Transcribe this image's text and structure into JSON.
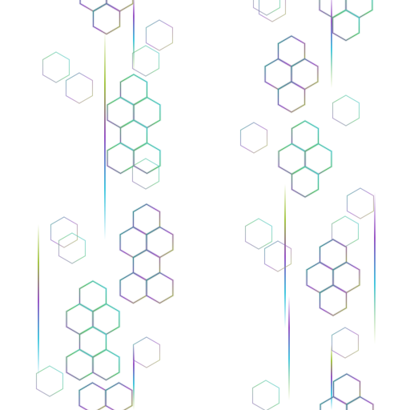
{
  "colors": {
    "background": "#ffffff",
    "teal": "#2aa88a",
    "purple": "#9b59c7",
    "lime": "#a8c84a",
    "cyan": "#48c8e0",
    "green": "#5cc070"
  },
  "pattern": {
    "name": "iridescent-hexagon-pattern",
    "element": "hexagon-outline",
    "accent": "vertical-light-streak"
  }
}
